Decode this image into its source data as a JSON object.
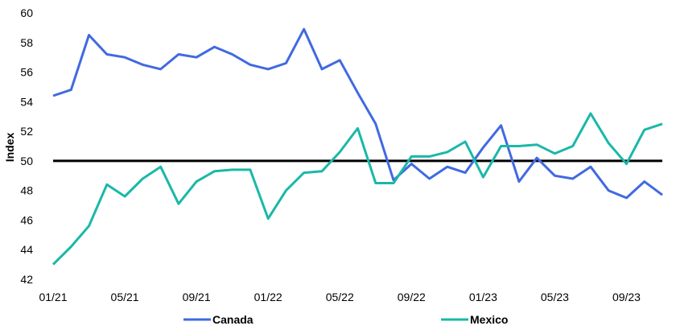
{
  "chart_data": {
    "type": "line",
    "ylabel": "Index",
    "xlabel": "",
    "ylim": [
      42,
      60
    ],
    "yticks": [
      42,
      44,
      46,
      48,
      50,
      52,
      54,
      56,
      58,
      60
    ],
    "reference_line": 50,
    "grid": false,
    "legend_placement": "bottom",
    "x": [
      "01/21",
      "02/21",
      "03/21",
      "04/21",
      "05/21",
      "06/21",
      "07/21",
      "08/21",
      "09/21",
      "10/21",
      "11/21",
      "12/21",
      "01/22",
      "02/22",
      "03/22",
      "04/22",
      "05/22",
      "06/22",
      "07/22",
      "08/22",
      "09/22",
      "10/22",
      "11/22",
      "12/22",
      "01/23",
      "02/23",
      "03/23",
      "04/23",
      "05/23",
      "06/23",
      "07/23",
      "08/23",
      "09/23",
      "10/23",
      "11/23"
    ],
    "xtick_labels": [
      "01/21",
      "05/21",
      "09/21",
      "01/22",
      "05/22",
      "09/22",
      "01/23",
      "05/23",
      "09/23"
    ],
    "series": [
      {
        "name": "Canada",
        "color": "#4169e1",
        "values": [
          54.4,
          54.8,
          58.5,
          57.2,
          57.0,
          56.5,
          56.2,
          57.2,
          57.0,
          57.7,
          57.2,
          56.5,
          56.2,
          56.6,
          58.9,
          56.2,
          56.8,
          54.6,
          52.5,
          48.7,
          49.8,
          48.8,
          49.6,
          49.2,
          50.9,
          52.4,
          48.6,
          50.2,
          49.0,
          48.8,
          49.6,
          48.0,
          47.5,
          48.6,
          47.7
        ]
      },
      {
        "name": "Mexico",
        "color": "#1ab8a8",
        "values": [
          43.0,
          44.2,
          45.6,
          48.4,
          47.6,
          48.8,
          49.6,
          47.1,
          48.6,
          49.3,
          49.4,
          49.4,
          46.1,
          48.0,
          49.2,
          49.3,
          50.6,
          52.2,
          48.5,
          48.5,
          50.3,
          50.3,
          50.6,
          51.3,
          48.9,
          51.0,
          51.0,
          51.1,
          50.5,
          51.0,
          53.2,
          51.2,
          49.8,
          52.1,
          52.5
        ]
      }
    ]
  }
}
